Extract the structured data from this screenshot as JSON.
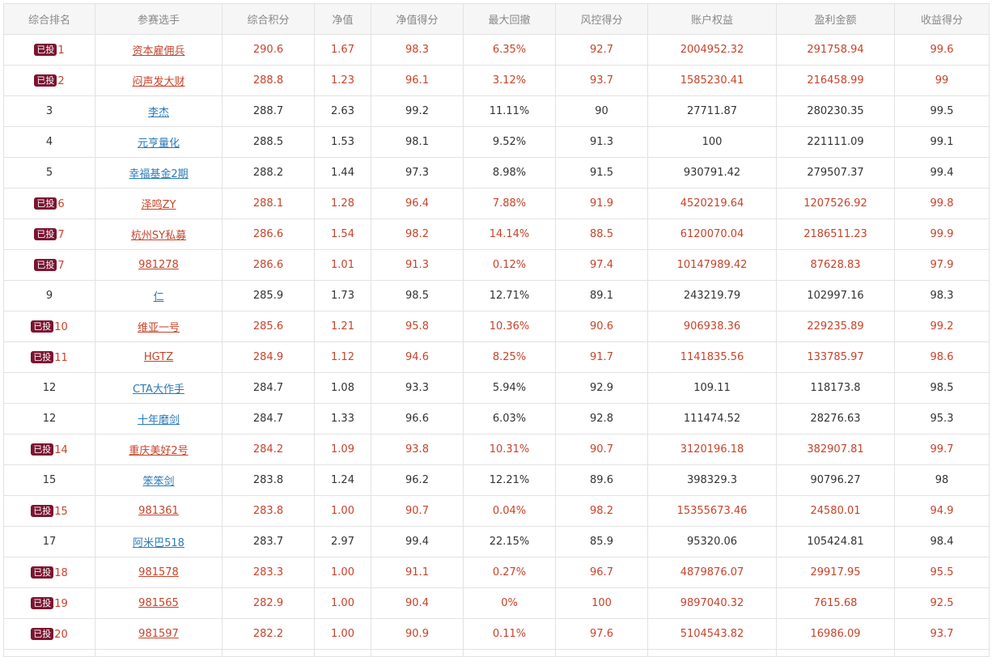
{
  "headers": [
    "综合排名",
    "参赛选手",
    "综合积分",
    "净值",
    "净值得分",
    "最大回撤",
    "风控得分",
    "账户权益",
    "盈利金额",
    "收益得分"
  ],
  "badge_text": "已投",
  "colors": {
    "invested_text": "#c7432a",
    "normal_text": "#333333",
    "normal_link": "#2a7ab8",
    "badge_bg": "#7b1431"
  },
  "rows": [
    {
      "invested": true,
      "rank": "1",
      "name": "资本雇佣兵",
      "score": "290.6",
      "nav": "1.67",
      "nav_score": "98.3",
      "max_drawdown": "6.35%",
      "risk_score": "92.7",
      "equity": "2004952.32",
      "profit": "291758.94",
      "return_score": "99.6"
    },
    {
      "invested": true,
      "rank": "2",
      "name": "闷声发大财",
      "score": "288.8",
      "nav": "1.23",
      "nav_score": "96.1",
      "max_drawdown": "3.12%",
      "risk_score": "93.7",
      "equity": "1585230.41",
      "profit": "216458.99",
      "return_score": "99"
    },
    {
      "invested": false,
      "rank": "3",
      "name": "李杰",
      "score": "288.7",
      "nav": "2.63",
      "nav_score": "99.2",
      "max_drawdown": "11.11%",
      "risk_score": "90",
      "equity": "27711.87",
      "profit": "280230.35",
      "return_score": "99.5"
    },
    {
      "invested": false,
      "rank": "4",
      "name": "元亨量化",
      "score": "288.5",
      "nav": "1.53",
      "nav_score": "98.1",
      "max_drawdown": "9.52%",
      "risk_score": "91.3",
      "equity": "100",
      "profit": "221111.09",
      "return_score": "99.1"
    },
    {
      "invested": false,
      "rank": "5",
      "name": "幸福基金2期",
      "score": "288.2",
      "nav": "1.44",
      "nav_score": "97.3",
      "max_drawdown": "8.98%",
      "risk_score": "91.5",
      "equity": "930791.42",
      "profit": "279507.37",
      "return_score": "99.4"
    },
    {
      "invested": true,
      "rank": "6",
      "name": "泽鸣ZY",
      "score": "288.1",
      "nav": "1.28",
      "nav_score": "96.4",
      "max_drawdown": "7.88%",
      "risk_score": "91.9",
      "equity": "4520219.64",
      "profit": "1207526.92",
      "return_score": "99.8"
    },
    {
      "invested": true,
      "rank": "7",
      "name": "杭州SY私募",
      "score": "286.6",
      "nav": "1.54",
      "nav_score": "98.2",
      "max_drawdown": "14.14%",
      "risk_score": "88.5",
      "equity": "6120070.04",
      "profit": "2186511.23",
      "return_score": "99.9"
    },
    {
      "invested": true,
      "rank": "7",
      "name": "981278",
      "score": "286.6",
      "nav": "1.01",
      "nav_score": "91.3",
      "max_drawdown": "0.12%",
      "risk_score": "97.4",
      "equity": "10147989.42",
      "profit": "87628.83",
      "return_score": "97.9"
    },
    {
      "invested": false,
      "rank": "9",
      "name": "仁",
      "score": "285.9",
      "nav": "1.73",
      "nav_score": "98.5",
      "max_drawdown": "12.71%",
      "risk_score": "89.1",
      "equity": "243219.79",
      "profit": "102997.16",
      "return_score": "98.3"
    },
    {
      "invested": true,
      "rank": "10",
      "name": "维亚一号",
      "score": "285.6",
      "nav": "1.21",
      "nav_score": "95.8",
      "max_drawdown": "10.36%",
      "risk_score": "90.6",
      "equity": "906938.36",
      "profit": "229235.89",
      "return_score": "99.2"
    },
    {
      "invested": true,
      "rank": "11",
      "name": "HGTZ",
      "score": "284.9",
      "nav": "1.12",
      "nav_score": "94.6",
      "max_drawdown": "8.25%",
      "risk_score": "91.7",
      "equity": "1141835.56",
      "profit": "133785.97",
      "return_score": "98.6"
    },
    {
      "invested": false,
      "rank": "12",
      "name": "CTA大作手",
      "score": "284.7",
      "nav": "1.08",
      "nav_score": "93.3",
      "max_drawdown": "5.94%",
      "risk_score": "92.9",
      "equity": "109.11",
      "profit": "118173.8",
      "return_score": "98.5"
    },
    {
      "invested": false,
      "rank": "12",
      "name": "十年磨剑",
      "score": "284.7",
      "nav": "1.33",
      "nav_score": "96.6",
      "max_drawdown": "6.03%",
      "risk_score": "92.8",
      "equity": "111474.52",
      "profit": "28276.63",
      "return_score": "95.3"
    },
    {
      "invested": true,
      "rank": "14",
      "name": "重庆美好2号",
      "score": "284.2",
      "nav": "1.09",
      "nav_score": "93.8",
      "max_drawdown": "10.31%",
      "risk_score": "90.7",
      "equity": "3120196.18",
      "profit": "382907.81",
      "return_score": "99.7"
    },
    {
      "invested": false,
      "rank": "15",
      "name": "笨笨剑",
      "score": "283.8",
      "nav": "1.24",
      "nav_score": "96.2",
      "max_drawdown": "12.21%",
      "risk_score": "89.6",
      "equity": "398329.3",
      "profit": "90796.27",
      "return_score": "98"
    },
    {
      "invested": true,
      "rank": "15",
      "name": "981361",
      "score": "283.8",
      "nav": "1.00",
      "nav_score": "90.7",
      "max_drawdown": "0.04%",
      "risk_score": "98.2",
      "equity": "15355673.46",
      "profit": "24580.01",
      "return_score": "94.9"
    },
    {
      "invested": false,
      "rank": "17",
      "name": "阿米巴518",
      "score": "283.7",
      "nav": "2.97",
      "nav_score": "99.4",
      "max_drawdown": "22.15%",
      "risk_score": "85.9",
      "equity": "95320.06",
      "profit": "105424.81",
      "return_score": "98.4"
    },
    {
      "invested": true,
      "rank": "18",
      "name": "981578",
      "score": "283.3",
      "nav": "1.00",
      "nav_score": "91.1",
      "max_drawdown": "0.27%",
      "risk_score": "96.7",
      "equity": "4879876.07",
      "profit": "29917.95",
      "return_score": "95.5"
    },
    {
      "invested": true,
      "rank": "19",
      "name": "981565",
      "score": "282.9",
      "nav": "1.00",
      "nav_score": "90.4",
      "max_drawdown": "0%",
      "risk_score": "100",
      "equity": "9897040.32",
      "profit": "7615.68",
      "return_score": "92.5"
    },
    {
      "invested": true,
      "rank": "20",
      "name": "981597",
      "score": "282.2",
      "nav": "1.00",
      "nav_score": "90.9",
      "max_drawdown": "0.11%",
      "risk_score": "97.6",
      "equity": "5104543.82",
      "profit": "16986.09",
      "return_score": "93.7"
    }
  ]
}
